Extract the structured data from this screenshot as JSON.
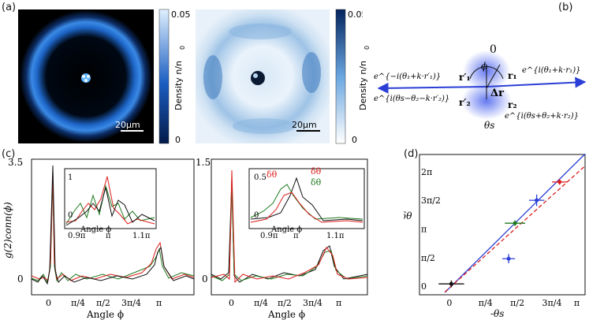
{
  "panel_labels": {
    "a": "(a)",
    "b": "(b)",
    "c": "(c)",
    "d": "(d)"
  },
  "panel_a": {
    "colorbar_label": "Density n/n",
    "colorbar_sub": "0",
    "colorbar_max": "0.05",
    "colorbar_min": "0",
    "scalebar": "20μm"
  },
  "panel_b": {
    "zero_label": "0",
    "phi_label": "ϕ",
    "delta_r": "Δr",
    "theta_s": "θs",
    "r1": "r₁",
    "r2": "r₂",
    "r1p": "r′₁",
    "r2p": "r′₂",
    "phase_r1": "e^{i(θ₁+k·r₁)}",
    "phase_r1p": "e^{−i(θ₁+k·r′₁)}",
    "phase_r2": "e^{i(θs+θ₂+k·r₂)}",
    "phase_r2p": "e^{i(θs−θ₂−k·r′₂)}"
  },
  "panel_c": {
    "ylabel": "g(2)conn(ϕ)",
    "xlabel": "Angle ϕ",
    "left_yticks": [
      "3.5",
      "0"
    ],
    "right_yticks": [
      "1.5",
      "0"
    ],
    "xticks": [
      "0",
      "π/4",
      "π/2",
      "3π/4",
      "π"
    ],
    "inset_left_yticks": [
      "1",
      "0"
    ],
    "inset_right_yticks": [
      "0.5",
      "0"
    ],
    "inset_xticks": [
      "0.9π",
      "π",
      "1.1π"
    ],
    "delta_theta": "δθ",
    "colors": {
      "black": "#111111",
      "green": "#1f7a1f",
      "red": "#dd1c1c"
    }
  },
  "chart_data": {
    "type": "scatter",
    "xlabel": "-θs",
    "ylabel": "δθ",
    "x_ticks": [
      "0",
      "π/4",
      "π/2",
      "3π/4",
      "π"
    ],
    "y_ticks": [
      "0",
      "π/2",
      "π",
      "3π/2",
      "2π"
    ],
    "xlim": [
      -0.25,
      1.05
    ],
    "ylim": [
      -0.15,
      2.3
    ],
    "points": [
      {
        "x": 0.0,
        "y": 0.04,
        "xerr": 0.1,
        "yerr": 0.06,
        "color": "#111111"
      },
      {
        "x": 0.45,
        "y": 0.48,
        "xerr": 0.05,
        "yerr": 0.08,
        "color": "#2b3fd6"
      },
      {
        "x": 0.5,
        "y": 1.1,
        "xerr": 0.08,
        "yerr": 0.05,
        "color": "#1f7a1f"
      },
      {
        "x": 0.67,
        "y": 1.5,
        "xerr": 0.06,
        "yerr": 0.1,
        "color": "#2b3fd6"
      },
      {
        "x": 0.85,
        "y": 1.82,
        "xerr": 0.06,
        "yerr": 0.05,
        "color": "#dd1c1c"
      }
    ],
    "fit_solid": {
      "slope": 2.2,
      "intercept": 0.0,
      "color": "#2b3fd6"
    },
    "fit_dashed": {
      "slope": 2.0,
      "intercept": 0.0,
      "color": "#dd1c1c"
    }
  }
}
